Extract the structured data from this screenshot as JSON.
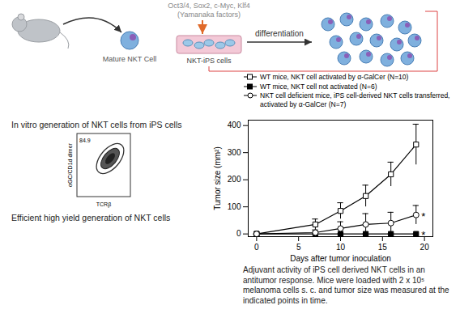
{
  "diagram": {
    "factors": "Oct3/4, Sox2, c-Myc, Klf4",
    "factors_note": "(Yamanaka factors)",
    "nodes": [
      {
        "label": "Mature NKT Cell"
      },
      {
        "label": "NKT-iPS cells"
      }
    ],
    "edges": [
      {
        "label": "differentiation"
      }
    ]
  },
  "flow_plot": {
    "title": "In vitro generation of NKT cells from iPS cells",
    "gate_percent": 84.9,
    "x_label": "TCRβ",
    "y_label": "αGC/CD1d dimer",
    "caption": "Efficient high yield generation of NKT cells"
  },
  "chart_data": {
    "type": "line",
    "x_label": "Days after tumor inoculation",
    "y_label": "Tumor size (mm²)",
    "caption": "Adjuvant activity of iPS cell derived NKT cells in an antitumor response. Mice were loaded with 2 x 10⁵ melanoma cells s. c. and tumor size was measured at the indicated points in time.",
    "x": [
      0,
      7,
      10,
      13,
      16,
      19
    ],
    "series": [
      {
        "name": "WT mice, NKT cell activated by α-GalCer (N=10)",
        "color": "#000000",
        "marker": "square-open",
        "values": [
          0,
          35,
          85,
          140,
          220,
          330
        ],
        "errors": [
          0,
          20,
          30,
          40,
          45,
          75
        ]
      },
      {
        "name": "WT mice, NKT cell not activated (N=6)",
        "color": "#000000",
        "marker": "square",
        "values": [
          0,
          0,
          0,
          0,
          0,
          0
        ],
        "errors": [
          0,
          0,
          0,
          0,
          0,
          0
        ]
      },
      {
        "name": "NKT cell deficient mice, iPS cell-derived NKT cells transferred, activated by α-GalCer (N=7)",
        "color": "#000000",
        "marker": "circle-open",
        "values": [
          0,
          5,
          20,
          35,
          40,
          70
        ],
        "errors": [
          0,
          10,
          25,
          40,
          40,
          35
        ]
      }
    ],
    "annotations": [
      {
        "x": 19,
        "y": 70,
        "text": "*"
      },
      {
        "x": 19,
        "y": 0,
        "text": "*"
      }
    ],
    "xlim": [
      -1,
      21
    ],
    "ylim": [
      -10,
      420
    ],
    "xticks": [
      0,
      5,
      10,
      15,
      20
    ],
    "yticks": [
      0,
      100,
      200,
      300,
      400
    ],
    "grid": false,
    "legend": "top"
  }
}
